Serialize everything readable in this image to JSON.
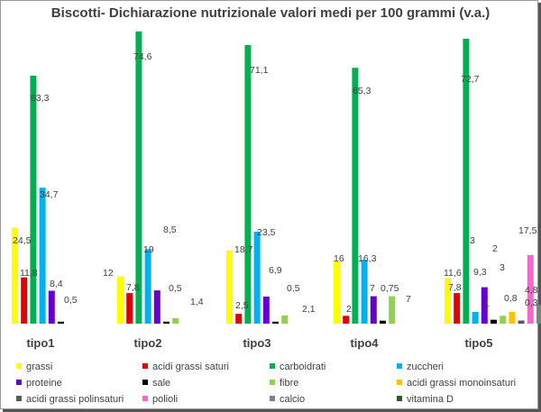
{
  "chart_data": {
    "type": "bar",
    "title": "Biscotti- Dichiarazione nutrizionale valori medi  per 100 grammi (v.a.)",
    "xlabel": "",
    "ylabel": "",
    "ylim": [
      0,
      78
    ],
    "grid": false,
    "legend_position": "bottom",
    "categories": [
      "tipo1",
      "tipo2",
      "tipo3",
      "tipo4",
      "tipo5"
    ],
    "series": [
      {
        "name": "grassi",
        "color": "#ffff00",
        "values": [
          24.5,
          12,
          18.7,
          16,
          11.6
        ],
        "labels": [
          "24,5",
          "12",
          "18,7",
          "16",
          "11,6"
        ]
      },
      {
        "name": "acidi grassi saturi",
        "color": "#e00000",
        "values": [
          11.8,
          7.8,
          2.5,
          2,
          7.8
        ],
        "labels": [
          "11,8",
          "7,8",
          "2,5",
          "2",
          "7,8"
        ]
      },
      {
        "name": "carboidrati",
        "color": "#00b050",
        "values": [
          63.3,
          74.6,
          71.1,
          65.3,
          72.7
        ],
        "labels": [
          "63,3",
          "74,6",
          "71,1",
          "65,3",
          "72,7"
        ]
      },
      {
        "name": "zuccheri",
        "color": "#00b0f0",
        "values": [
          34.7,
          19,
          23.5,
          16.3,
          3
        ],
        "labels": [
          "34,7",
          "19",
          "23,5",
          "16,3",
          "3"
        ]
      },
      {
        "name": "proteine",
        "color": "#6600cc",
        "values": [
          8.4,
          8.5,
          6.9,
          7,
          9.3
        ],
        "labels": [
          "8,4",
          "8,5",
          "6,9",
          "7",
          "9,3"
        ]
      },
      {
        "name": "sale",
        "color": "#000000",
        "values": [
          0.5,
          0.5,
          0.5,
          0.75,
          1
        ],
        "labels": [
          "0,5",
          "0,5",
          "0,5",
          "0,75",
          "1"
        ]
      },
      {
        "name": "fibre",
        "color": "#92d050",
        "values": [
          null,
          1.4,
          2.1,
          7,
          2
        ],
        "labels": [
          "",
          "1,4",
          "2,1",
          "7",
          "2"
        ]
      },
      {
        "name": "acidi grassi monoinsaturi",
        "color": "#ffc000",
        "values": [
          null,
          null,
          null,
          null,
          3
        ],
        "labels": [
          "",
          "",
          "",
          "",
          "3"
        ]
      },
      {
        "name": "acidi grassi polinsaturi",
        "color": "#595959",
        "values": [
          null,
          null,
          null,
          null,
          0.8
        ],
        "labels": [
          "",
          "",
          "",
          "",
          "0,8"
        ]
      },
      {
        "name": "polioli",
        "color": "#ff66cc",
        "values": [
          null,
          null,
          null,
          null,
          17.5
        ],
        "labels": [
          "",
          "",
          "",
          "",
          "17,5"
        ]
      },
      {
        "name": "calcio",
        "color": "#808080",
        "values": [
          null,
          null,
          null,
          null,
          4.8
        ],
        "labels": [
          "",
          "",
          "",
          "",
          "4,8"
        ]
      },
      {
        "name": "vitamina D",
        "color": "#385723",
        "values": [
          null,
          null,
          null,
          null,
          0.3
        ],
        "labels": [
          "",
          "",
          "",
          "",
          "0,3"
        ]
      }
    ]
  }
}
